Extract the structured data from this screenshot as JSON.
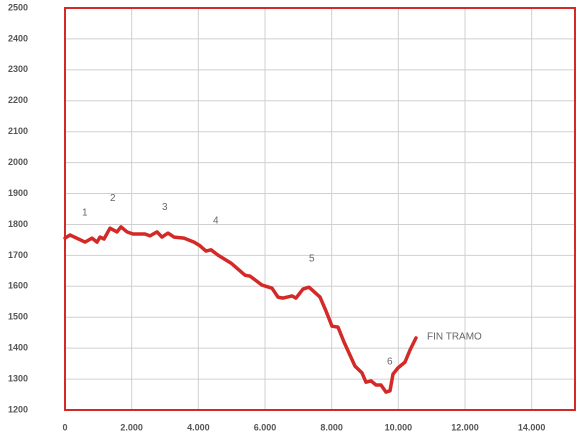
{
  "chart_data": {
    "type": "line",
    "x": [
      0,
      150,
      600,
      810,
      960,
      1050,
      1170,
      1350,
      1560,
      1680,
      1860,
      2040,
      2400,
      2550,
      2760,
      2910,
      3090,
      3270,
      3570,
      3870,
      4050,
      4230,
      4380,
      4590,
      4980,
      5400,
      5550,
      5910,
      6210,
      6390,
      6540,
      6810,
      6930,
      7140,
      7320,
      7650,
      7830,
      8010,
      8190,
      8370,
      8700,
      8910,
      9030,
      9180,
      9330,
      9480,
      9630,
      9750,
      9840,
      9990,
      10200,
      10350,
      10530
    ],
    "series": [
      {
        "color": "#d42a27",
        "values": [
          1756,
          1766,
          1743,
          1756,
          1743,
          1759,
          1753,
          1788,
          1776,
          1792,
          1776,
          1769,
          1769,
          1763,
          1776,
          1759,
          1772,
          1759,
          1756,
          1743,
          1731,
          1714,
          1718,
          1701,
          1675,
          1636,
          1633,
          1604,
          1594,
          1565,
          1562,
          1569,
          1562,
          1591,
          1597,
          1565,
          1520,
          1471,
          1468,
          1420,
          1342,
          1320,
          1290,
          1294,
          1281,
          1281,
          1258,
          1262,
          1316,
          1336,
          1355,
          1394,
          1433
        ]
      }
    ],
    "xlim": [
      0,
      15330
    ],
    "ylim": [
      1200,
      2500
    ],
    "xticks": [
      0,
      {
        "value": 2000,
        "label": "2.000"
      },
      {
        "value": 4000,
        "label": "4.000"
      },
      {
        "value": 6000,
        "label": "6.000"
      },
      {
        "value": 8000,
        "label": "8.000"
      },
      {
        "value": 10000,
        "label": "10.000"
      },
      {
        "value": 12000,
        "label": "12.000"
      },
      {
        "value": 14000,
        "label": "14.000"
      }
    ],
    "yticks": [
      1200,
      1300,
      1400,
      1500,
      1600,
      1700,
      1800,
      1900,
      2000,
      2100,
      2200,
      2300,
      2400,
      2500
    ],
    "grid": true,
    "frame_color": "#d42a27",
    "annotations": [
      {
        "text": "1",
        "x": 510,
        "y": 1837
      },
      {
        "text": "2",
        "x": 1350,
        "y": 1885
      },
      {
        "text": "3",
        "x": 2910,
        "y": 1856
      },
      {
        "text": "4",
        "x": 4440,
        "y": 1811
      },
      {
        "text": "5",
        "x": 7320,
        "y": 1688
      },
      {
        "text": "6",
        "x": 9660,
        "y": 1355
      },
      {
        "text": "FIN TRAMO",
        "x": 10860,
        "y": 1436
      }
    ]
  }
}
